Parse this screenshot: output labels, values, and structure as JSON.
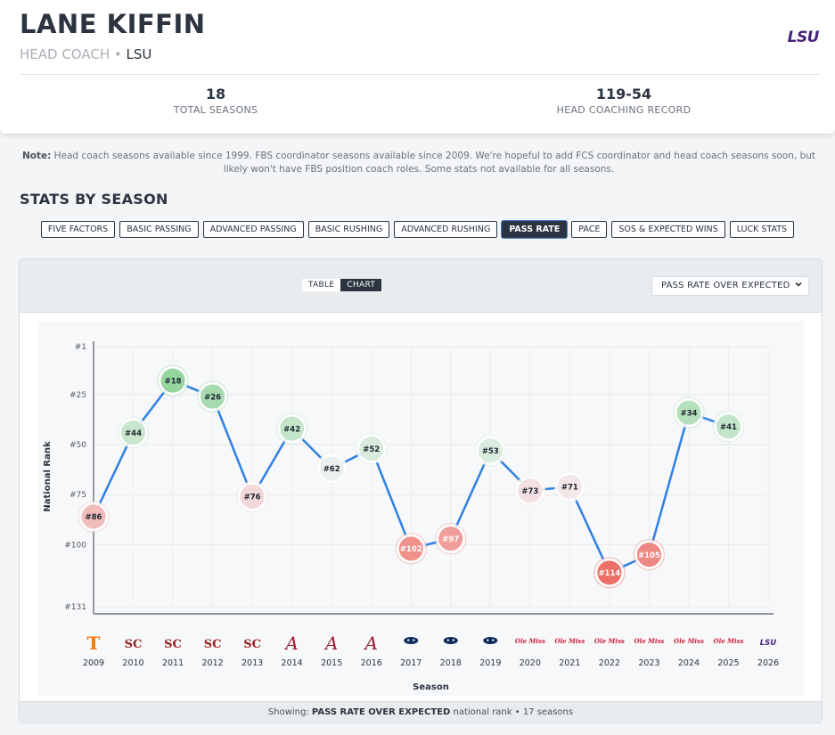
{
  "header": {
    "name": "LANE KIFFIN",
    "role": "HEAD COACH",
    "separator": "•",
    "team": "LSU",
    "team_logo_text": "LSU",
    "stats": [
      {
        "value": "18",
        "label": "TOTAL SEASONS"
      },
      {
        "value": "119-54",
        "label": "HEAD COACHING RECORD"
      }
    ]
  },
  "note": {
    "prefix": "Note:",
    "text": "Head coach seasons available since 1999. FBS coordinator seasons available since 2009. We're hopeful to add FCS coordinator and head coach seasons soon, but likely won't have FBS position coach roles. Some stats not available for all seasons."
  },
  "section_title": "STATS BY SEASON",
  "tabs": [
    {
      "label": "FIVE FACTORS",
      "active": false
    },
    {
      "label": "BASIC PASSING",
      "active": false
    },
    {
      "label": "ADVANCED PASSING",
      "active": false
    },
    {
      "label": "BASIC RUSHING",
      "active": false
    },
    {
      "label": "ADVANCED RUSHING",
      "active": false
    },
    {
      "label": "PASS RATE",
      "active": true
    },
    {
      "label": "PACE",
      "active": false
    },
    {
      "label": "SOS & EXPECTED WINS",
      "active": false
    },
    {
      "label": "LUCK STATS",
      "active": false
    }
  ],
  "view_toggle": {
    "table": "TABLE",
    "chart": "CHART",
    "active": "chart"
  },
  "metric_select": {
    "value": "PASS RATE OVER EXPECTED"
  },
  "footer": {
    "prefix": "Showing:",
    "metric": "PASS RATE OVER EXPECTED",
    "suffix": "national rank • 17 seasons"
  },
  "colors": {
    "line": "#2f80e4",
    "rank_good": "#8fd49a",
    "rank_mid": "#f3f4f5",
    "rank_bad": "#ec6a62"
  },
  "chart_data": {
    "type": "line",
    "title": "",
    "xlabel": "Season",
    "ylabel": "National Rank",
    "y_reversed": true,
    "ylim": [
      1,
      131
    ],
    "yticks": [
      "#1",
      "#25",
      "#50",
      "#75",
      "#100",
      "#131"
    ],
    "ytick_values": [
      1,
      25,
      50,
      75,
      100,
      131
    ],
    "grid": true,
    "x": [
      "2009",
      "2010",
      "2011",
      "2012",
      "2013",
      "2014",
      "2015",
      "2016",
      "2017",
      "2018",
      "2019",
      "2020",
      "2021",
      "2022",
      "2023",
      "2024",
      "2025",
      "2026"
    ],
    "series": [
      {
        "values": [
          86,
          44,
          18,
          26,
          76,
          42,
          62,
          52,
          102,
          97,
          53,
          73,
          71,
          114,
          105,
          34,
          41,
          null
        ],
        "labels": [
          "#86",
          "#44",
          "#18",
          "#26",
          "#76",
          "#42",
          "#62",
          "#52",
          "#102",
          "#97",
          "#53",
          "#73",
          "#71",
          "#114",
          "#105",
          "#34",
          "#41",
          ""
        ]
      }
    ],
    "team_logos": [
      {
        "team": "tennessee",
        "text": "T",
        "color": "#f07a10"
      },
      {
        "team": "usc",
        "text": "SC",
        "color": "#9b1c1f"
      },
      {
        "team": "usc",
        "text": "SC",
        "color": "#9b1c1f"
      },
      {
        "team": "usc",
        "text": "SC",
        "color": "#9b1c1f"
      },
      {
        "team": "usc",
        "text": "SC",
        "color": "#9b1c1f"
      },
      {
        "team": "alabama",
        "text": "A",
        "color": "#9e1b32"
      },
      {
        "team": "alabama",
        "text": "A",
        "color": "#9e1b32"
      },
      {
        "team": "alabama",
        "text": "A",
        "color": "#9e1b32"
      },
      {
        "team": "fau",
        "text": "owl",
        "color": "#0c2a5a"
      },
      {
        "team": "fau",
        "text": "owl",
        "color": "#0c2a5a"
      },
      {
        "team": "fau",
        "text": "owl",
        "color": "#0c2a5a"
      },
      {
        "team": "ole-miss",
        "text": "Ole Miss",
        "color": "#cf1f3a"
      },
      {
        "team": "ole-miss",
        "text": "Ole Miss",
        "color": "#cf1f3a"
      },
      {
        "team": "ole-miss",
        "text": "Ole Miss",
        "color": "#cf1f3a"
      },
      {
        "team": "ole-miss",
        "text": "Ole Miss",
        "color": "#cf1f3a"
      },
      {
        "team": "ole-miss",
        "text": "Ole Miss",
        "color": "#cf1f3a"
      },
      {
        "team": "ole-miss",
        "text": "Ole Miss",
        "color": "#cf1f3a"
      },
      {
        "team": "lsu",
        "text": "LSU",
        "color": "#46237a"
      }
    ]
  }
}
